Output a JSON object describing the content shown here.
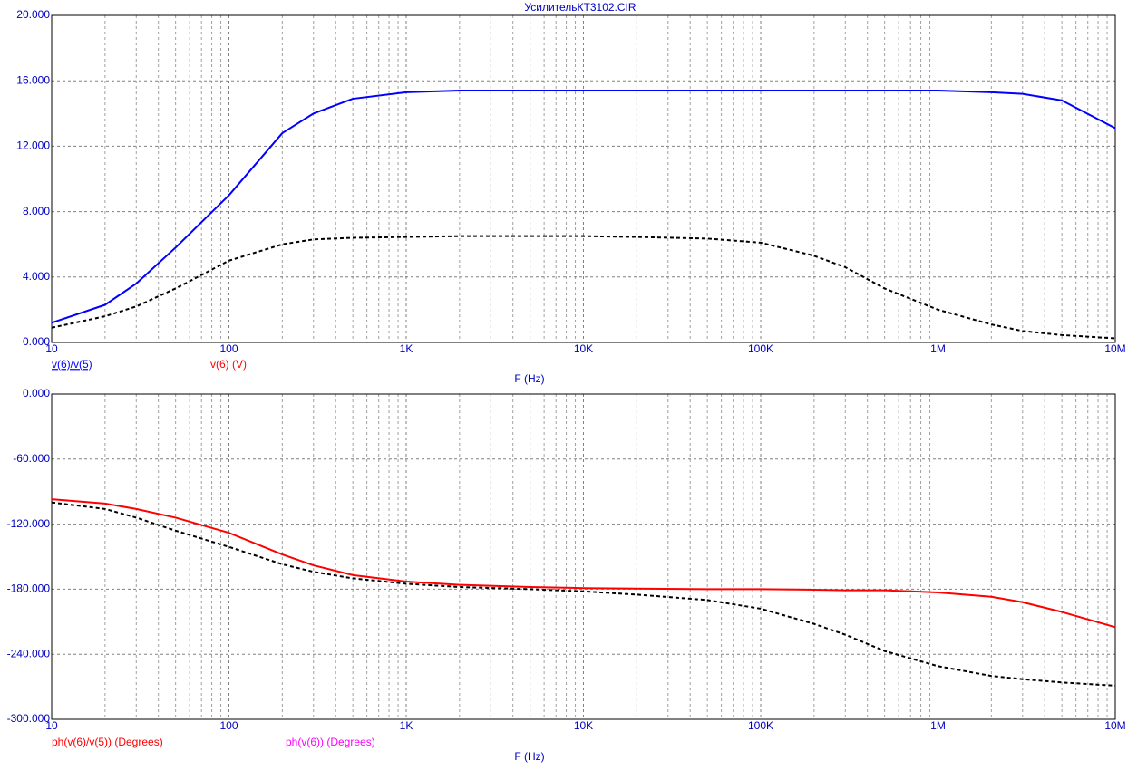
{
  "chart_data": [
    {
      "type": "line",
      "title": "УсилительКТ3102.CIR",
      "xlabel": "F (Hz)",
      "log_x": true,
      "grid": true,
      "minor_grid": true,
      "x": [
        10,
        20,
        30,
        50,
        100,
        200,
        300,
        500,
        1000,
        2000,
        5000,
        10000,
        20000,
        50000,
        100000,
        200000,
        300000,
        500000,
        1000000,
        2000000,
        3000000,
        5000000,
        10000000
      ],
      "xlim": [
        10,
        10000000
      ],
      "xticks": [
        10,
        100,
        {
          "value": 1000,
          "label": "1K"
        },
        {
          "value": 10000,
          "label": "10K"
        },
        {
          "value": 100000,
          "label": "100K"
        },
        {
          "value": 1000000,
          "label": "1M"
        },
        {
          "value": 10000000,
          "label": "10M"
        }
      ],
      "ylim": [
        0,
        20
      ],
      "yticks": [
        {
          "value": 0,
          "label": "0.000"
        },
        {
          "value": 4,
          "label": "4.000"
        },
        {
          "value": 8,
          "label": "8.000"
        },
        {
          "value": 12,
          "label": "12.000"
        },
        {
          "value": 16,
          "label": "16.000"
        },
        {
          "value": 20,
          "label": "20.000"
        }
      ],
      "series": [
        {
          "name": "v(6)/v(5)",
          "color": "#0000ff",
          "label_color": "#0000ff",
          "dashed": false,
          "values": [
            1.2,
            2.3,
            3.6,
            5.8,
            9.0,
            12.8,
            14.0,
            14.9,
            15.3,
            15.4,
            15.4,
            15.4,
            15.4,
            15.4,
            15.4,
            15.4,
            15.4,
            15.4,
            15.4,
            15.3,
            15.2,
            14.8,
            13.1
          ]
        },
        {
          "name": "v(6) (V)",
          "color": "#000000",
          "label_color": "#ff0000",
          "dashed": true,
          "values": [
            0.9,
            1.6,
            2.2,
            3.3,
            5.0,
            6.0,
            6.3,
            6.4,
            6.45,
            6.5,
            6.5,
            6.5,
            6.45,
            6.35,
            6.1,
            5.3,
            4.6,
            3.3,
            2.0,
            1.1,
            0.7,
            0.45,
            0.25
          ]
        }
      ]
    },
    {
      "type": "line",
      "xlabel": "F (Hz)",
      "log_x": true,
      "grid": true,
      "minor_grid": true,
      "x": [
        10,
        20,
        30,
        50,
        100,
        200,
        300,
        500,
        1000,
        2000,
        5000,
        10000,
        20000,
        50000,
        100000,
        200000,
        300000,
        500000,
        1000000,
        2000000,
        3000000,
        5000000,
        10000000
      ],
      "xlim": [
        10,
        10000000
      ],
      "xticks": [
        10,
        100,
        {
          "value": 1000,
          "label": "1K"
        },
        {
          "value": 10000,
          "label": "10K"
        },
        {
          "value": 100000,
          "label": "100K"
        },
        {
          "value": 1000000,
          "label": "1M"
        },
        {
          "value": 10000000,
          "label": "10M"
        }
      ],
      "ylim": [
        -300,
        0
      ],
      "yticks": [
        {
          "value": -300,
          "label": "-300.000"
        },
        {
          "value": -240,
          "label": "-240.000"
        },
        {
          "value": -180,
          "label": "-180.000"
        },
        {
          "value": -120,
          "label": "-120.000"
        },
        {
          "value": -60,
          "label": "-60.000"
        },
        {
          "value": 0,
          "label": "0.000"
        }
      ],
      "series": [
        {
          "name": "ph(v(6)/v(5)) (Degrees)",
          "color": "#ff0000",
          "label_color": "#ff0000",
          "dashed": false,
          "values": [
            -97,
            -101,
            -106,
            -114,
            -128,
            -148,
            -158,
            -167,
            -173,
            -176,
            -178,
            -179,
            -179.5,
            -180,
            -180,
            -180.5,
            -181,
            -181,
            -183,
            -187,
            -192,
            -201,
            -215
          ]
        },
        {
          "name": "ph(v(6)) (Degrees)",
          "color": "#000000",
          "label_color": "#ff00ff",
          "dashed": true,
          "values": [
            -100,
            -106,
            -114,
            -126,
            -141,
            -157,
            -164,
            -170,
            -175,
            -178,
            -180,
            -182,
            -185,
            -190,
            -198,
            -212,
            -222,
            -237,
            -251,
            -260,
            -263,
            -266,
            -269
          ]
        }
      ]
    }
  ]
}
